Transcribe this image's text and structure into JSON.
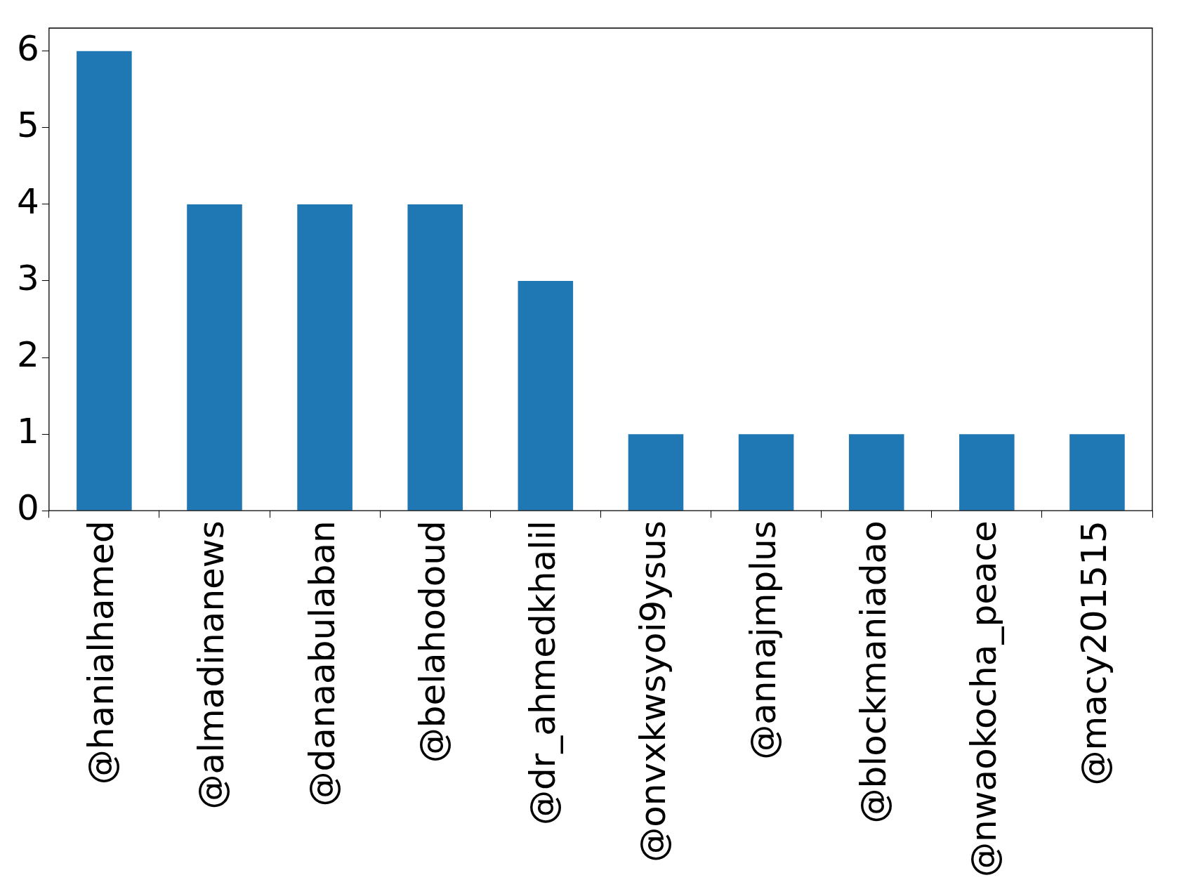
{
  "chart_data": {
    "type": "bar",
    "categories": [
      "@hanialhamed",
      "@almadinanews",
      "@danaabulaban",
      "@belahodoud",
      "@dr_ahmedkhalil",
      "@onvxkwsyoi9ysus",
      "@annajmplus",
      "@blockmaniadao",
      "@nwaokocha_peace",
      "@macy201515"
    ],
    "values": [
      6,
      4,
      4,
      4,
      3,
      1,
      1,
      1,
      1,
      1
    ],
    "color": "#1f77b4",
    "ylim": [
      0,
      6.3
    ],
    "yticks": [
      0,
      1,
      2,
      3,
      4,
      5,
      6
    ],
    "grid": false,
    "legend": false
  }
}
